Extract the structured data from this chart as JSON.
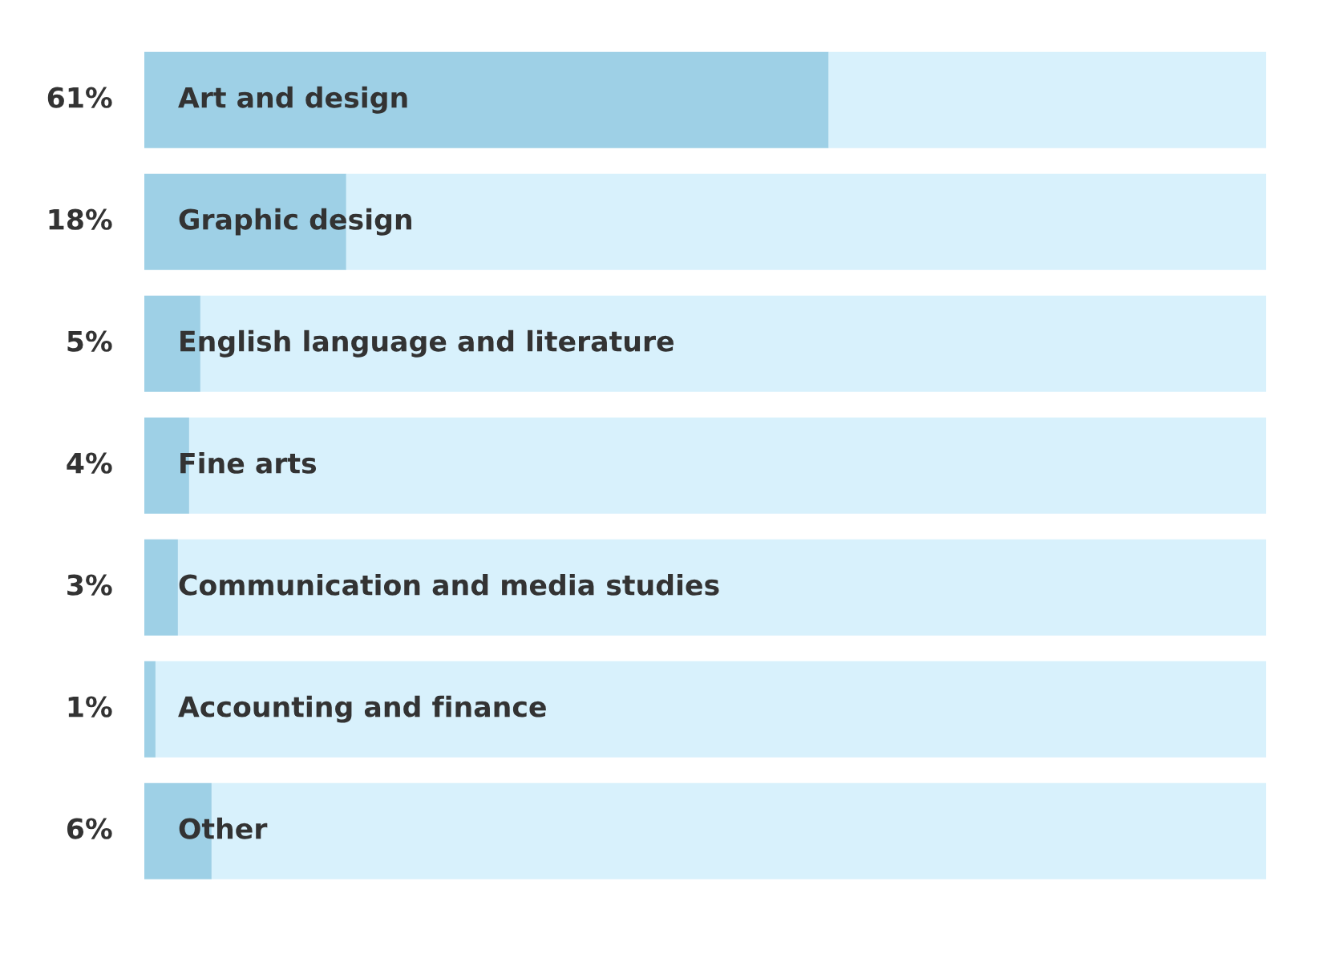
{
  "chart_data": {
    "type": "bar",
    "orientation": "horizontal",
    "stacked": true,
    "categories": [
      "Art and design",
      "Graphic design",
      "English language and literature",
      "Fine arts",
      "Communication and media studies",
      "Accounting and finance",
      "Other"
    ],
    "series": [
      {
        "color": "#9ed0e6",
        "values": [
          61,
          18,
          5,
          4,
          3,
          1,
          6
        ],
        "value_labels": [
          "61%",
          "18%",
          "5%",
          "4%",
          "3%",
          "1%",
          "6%"
        ]
      },
      {
        "color": "#d8f1fc",
        "values": [
          39,
          82,
          95,
          96,
          97,
          99,
          94
        ]
      }
    ],
    "xlim": [
      0,
      100
    ],
    "tick_labels": false
  }
}
